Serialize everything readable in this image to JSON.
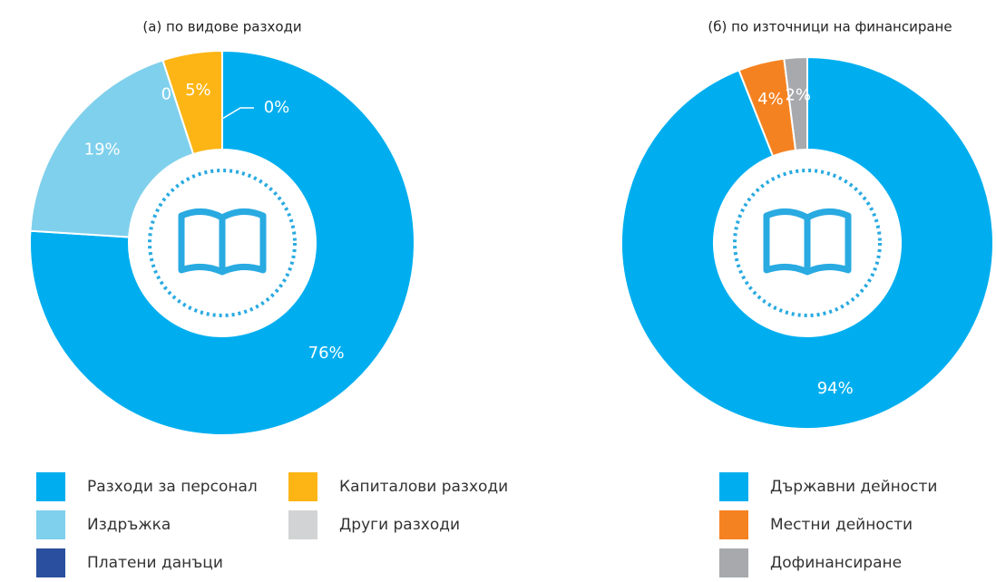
{
  "chart_data": [
    {
      "type": "pie",
      "title": "(а) по видове разходи",
      "categories": [
        "Разходи за персонал",
        "Издръжка",
        "Платени данъци",
        "Капиталови разходи",
        "Други разходи"
      ],
      "values": [
        76,
        19,
        0,
        5,
        0
      ],
      "value_labels": [
        "76%",
        "19%",
        "0%",
        "5%",
        "0%"
      ],
      "colors": [
        "#00aeef",
        "#7fd0ec",
        "#2a4f9e",
        "#fdb515",
        "#d1d3d4"
      ]
    },
    {
      "type": "pie",
      "title": "(б) по източници на финансиране",
      "categories": [
        "Държавни дейности",
        "Местни дейности",
        "Дофинансиране"
      ],
      "values": [
        94,
        4,
        2
      ],
      "value_labels": [
        "94%",
        "4%",
        "2%"
      ],
      "colors": [
        "#00aeef",
        "#f58220",
        "#a7a9ac"
      ]
    }
  ]
}
